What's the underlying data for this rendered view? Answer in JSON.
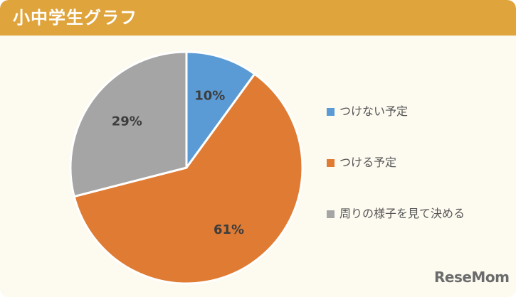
{
  "header": {
    "title": "小中学生グラフ"
  },
  "chart_data": {
    "type": "pie",
    "title": "小中学生グラフ",
    "slices": [
      {
        "label": "つけない予定",
        "value": 10,
        "value_label": "10%",
        "color": "#5b9bd5"
      },
      {
        "label": "つける予定",
        "value": 61,
        "value_label": "61%",
        "color": "#e07b33"
      },
      {
        "label": "周りの様子を見て決める",
        "value": 29,
        "value_label": "29%",
        "color": "#a5a5a5"
      }
    ],
    "legend_position": "right",
    "start_angle_deg": 0,
    "direction": "clockwise"
  },
  "branding": {
    "logo": "ReseMom"
  }
}
